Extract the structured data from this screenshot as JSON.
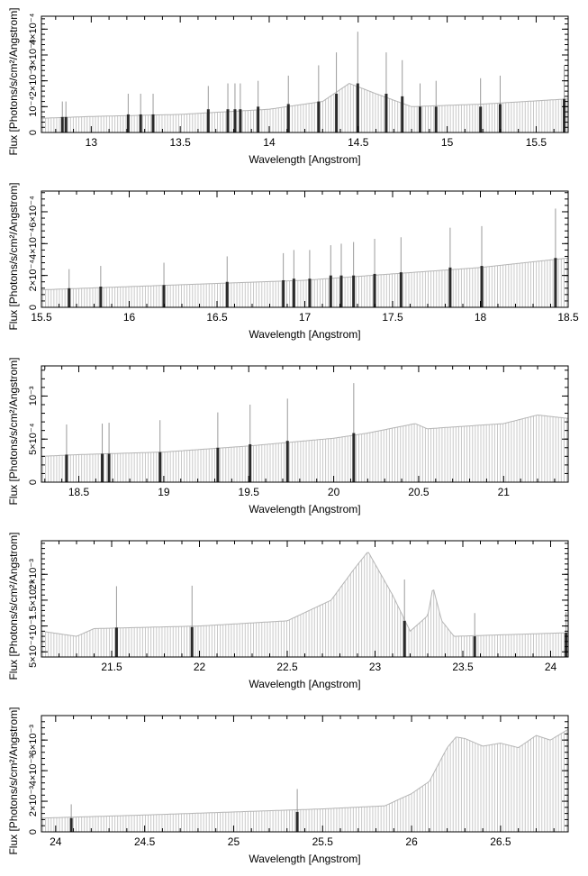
{
  "chart_data": [
    {
      "type": "bar",
      "xlabel": "Wavelength [Angstrom]",
      "ylabel": "Flux [Photons/s/cm²/Angstrom]",
      "xlim": [
        12.72,
        15.68
      ],
      "ylim": [
        0,
        0.00045
      ],
      "xticks": [
        "13",
        "13.5",
        "14",
        "14.5",
        "15",
        "15.5"
      ],
      "xtick_values": [
        13,
        13.5,
        14,
        14.5,
        15,
        15.5
      ],
      "yticks": [
        "0",
        "10⁻⁴",
        "2×10⁻⁴",
        "3×10⁻⁴",
        "4×10⁻⁴"
      ],
      "ytick_values": [
        0,
        0.0001,
        0.0002,
        0.0003,
        0.0004
      ],
      "continuum": [
        [
          12.72,
          5.5e-05
        ],
        [
          13.0,
          6.2e-05
        ],
        [
          13.5,
          7e-05
        ],
        [
          14.0,
          9e-05
        ],
        [
          14.3,
          0.00012
        ],
        [
          14.45,
          0.00019
        ],
        [
          14.6,
          0.00015
        ],
        [
          14.8,
          0.0001
        ],
        [
          15.2,
          0.00011
        ],
        [
          15.68,
          0.00013
        ]
      ],
      "lines": [
        {
          "x": 12.83,
          "y": 6e-05,
          "err": 6e-05
        },
        {
          "x": 12.85,
          "y": 6e-05,
          "err": 6e-05
        },
        {
          "x": 13.2,
          "y": 7e-05,
          "err": 8e-05
        },
        {
          "x": 13.27,
          "y": 7e-05,
          "err": 8e-05
        },
        {
          "x": 13.34,
          "y": 7e-05,
          "err": 8e-05
        },
        {
          "x": 13.65,
          "y": 9e-05,
          "err": 9e-05
        },
        {
          "x": 13.76,
          "y": 9e-05,
          "err": 0.0001
        },
        {
          "x": 13.8,
          "y": 9e-05,
          "err": 0.0001
        },
        {
          "x": 13.83,
          "y": 9e-05,
          "err": 0.0001
        },
        {
          "x": 13.93,
          "y": 0.0001,
          "err": 0.0001
        },
        {
          "x": 14.1,
          "y": 0.00011,
          "err": 0.00011
        },
        {
          "x": 14.27,
          "y": 0.00012,
          "err": 0.00014
        },
        {
          "x": 14.37,
          "y": 0.00015,
          "err": 0.00016
        },
        {
          "x": 14.49,
          "y": 0.00019,
          "err": 0.0002
        },
        {
          "x": 14.65,
          "y": 0.00015,
          "err": 0.00016
        },
        {
          "x": 14.74,
          "y": 0.00014,
          "err": 0.00014
        },
        {
          "x": 14.84,
          "y": 0.0001,
          "err": 9e-05
        },
        {
          "x": 14.93,
          "y": 0.0001,
          "err": 0.0001
        },
        {
          "x": 15.18,
          "y": 0.0001,
          "err": 0.00011
        },
        {
          "x": 15.29,
          "y": 0.00011,
          "err": 0.00011
        },
        {
          "x": 15.65,
          "y": 0.00013,
          "err": 0.00013
        }
      ]
    },
    {
      "type": "bar",
      "xlabel": "Wavelength [Angstrom]",
      "ylabel": "Flux [Photons/s/cm²/Angstrom]",
      "xlim": [
        15.5,
        18.5
      ],
      "ylim": [
        0,
        0.00073
      ],
      "xticks": [
        "15.5",
        "16",
        "16.5",
        "17",
        "17.5",
        "18",
        "18.5"
      ],
      "xtick_values": [
        15.5,
        16,
        16.5,
        17,
        17.5,
        18,
        18.5
      ],
      "yticks": [
        "0",
        "2×10⁻⁴",
        "4×10⁻⁴",
        "6×10⁻⁴"
      ],
      "ytick_values": [
        0,
        0.0002,
        0.0004,
        0.0006
      ],
      "continuum": [
        [
          15.5,
          0.00011
        ],
        [
          16.0,
          0.00013
        ],
        [
          16.5,
          0.00015
        ],
        [
          17.0,
          0.00017
        ],
        [
          17.5,
          0.00021
        ],
        [
          18.0,
          0.00025
        ],
        [
          18.5,
          0.00031
        ]
      ],
      "lines": [
        {
          "x": 15.65,
          "y": 0.00012,
          "err": 0.00012
        },
        {
          "x": 15.83,
          "y": 0.00013,
          "err": 0.00013
        },
        {
          "x": 16.19,
          "y": 0.00014,
          "err": 0.00014
        },
        {
          "x": 16.55,
          "y": 0.00016,
          "err": 0.00016
        },
        {
          "x": 16.87,
          "y": 0.00017,
          "err": 0.00017
        },
        {
          "x": 16.93,
          "y": 0.00018,
          "err": 0.00018
        },
        {
          "x": 17.02,
          "y": 0.00018,
          "err": 0.00018
        },
        {
          "x": 17.14,
          "y": 0.0002,
          "err": 0.00019
        },
        {
          "x": 17.2,
          "y": 0.0002,
          "err": 0.0002
        },
        {
          "x": 17.27,
          "y": 0.0002,
          "err": 0.00021
        },
        {
          "x": 17.39,
          "y": 0.00021,
          "err": 0.00022
        },
        {
          "x": 17.54,
          "y": 0.00022,
          "err": 0.00022
        },
        {
          "x": 17.82,
          "y": 0.00025,
          "err": 0.00025
        },
        {
          "x": 18.0,
          "y": 0.00026,
          "err": 0.00025
        },
        {
          "x": 18.42,
          "y": 0.00031,
          "err": 0.00031
        }
      ]
    },
    {
      "type": "bar",
      "xlabel": "Wavelength [Angstrom]",
      "ylabel": "Flux [Photons/s/cm²/Angstrom]",
      "xlim": [
        18.28,
        21.38
      ],
      "ylim": [
        0,
        0.00135
      ],
      "xticks": [
        "18.5",
        "19",
        "19.5",
        "20",
        "20.5",
        "21"
      ],
      "xtick_values": [
        18.5,
        19,
        19.5,
        20,
        20.5,
        21
      ],
      "yticks": [
        "0",
        "5×10⁻⁴",
        "10⁻³"
      ],
      "ytick_values": [
        0,
        0.0005,
        0.001
      ],
      "continuum": [
        [
          18.28,
          0.0003
        ],
        [
          18.5,
          0.00032
        ],
        [
          19.0,
          0.00035
        ],
        [
          19.5,
          0.00042
        ],
        [
          20.0,
          0.00051
        ],
        [
          20.2,
          0.00057
        ],
        [
          20.48,
          0.00068
        ],
        [
          20.55,
          0.00062
        ],
        [
          21.0,
          0.00068
        ],
        [
          21.2,
          0.00078
        ],
        [
          21.38,
          0.00074
        ]
      ],
      "lines": [
        {
          "x": 18.42,
          "y": 0.00032,
          "err": 0.00035
        },
        {
          "x": 18.63,
          "y": 0.00033,
          "err": 0.00035
        },
        {
          "x": 18.67,
          "y": 0.00033,
          "err": 0.00036
        },
        {
          "x": 18.97,
          "y": 0.00035,
          "err": 0.00037
        },
        {
          "x": 19.31,
          "y": 0.0004,
          "err": 0.00041
        },
        {
          "x": 19.5,
          "y": 0.00044,
          "err": 0.00046
        },
        {
          "x": 19.72,
          "y": 0.00048,
          "err": 0.00049
        },
        {
          "x": 20.11,
          "y": 0.00057,
          "err": 0.00058
        }
      ]
    },
    {
      "type": "bar",
      "xlabel": "Wavelength [Angstrom]",
      "ylabel": "Flux [Photons/s/cm²/Angstrom]",
      "xlim": [
        21.1,
        24.1
      ],
      "ylim": [
        0.0004,
        0.00265
      ],
      "xticks": [
        "21.5",
        "22",
        "22.5",
        "23",
        "23.5",
        "24"
      ],
      "xtick_values": [
        21.5,
        22,
        22.5,
        23,
        23.5,
        24
      ],
      "yticks": [
        "5×10⁻⁴",
        "10⁻³",
        "1.5×10⁻³",
        "2×10⁻³"
      ],
      "ytick_values": [
        0.0005,
        0.001,
        0.0015,
        0.002
      ],
      "continuum": [
        [
          21.1,
          0.0009
        ],
        [
          21.3,
          0.0008
        ],
        [
          21.4,
          0.00095
        ],
        [
          22.0,
          0.001
        ],
        [
          22.5,
          0.0011
        ],
        [
          22.75,
          0.0015
        ],
        [
          22.88,
          0.0021
        ],
        [
          22.96,
          0.00244
        ],
        [
          23.1,
          0.0016
        ],
        [
          23.2,
          0.0009
        ],
        [
          23.3,
          0.0012
        ],
        [
          23.33,
          0.00175
        ],
        [
          23.38,
          0.0011
        ],
        [
          23.45,
          0.0008
        ],
        [
          24.1,
          0.00087
        ]
      ],
      "lines": [
        {
          "x": 21.52,
          "y": 0.00097,
          "err": 0.0008
        },
        {
          "x": 21.95,
          "y": 0.00098,
          "err": 0.0008
        },
        {
          "x": 23.16,
          "y": 0.0011,
          "err": 0.0008
        },
        {
          "x": 23.56,
          "y": 0.0008,
          "err": 0.00045
        },
        {
          "x": 24.08,
          "y": 0.00087,
          "err": 0.0004
        }
      ]
    },
    {
      "type": "bar",
      "xlabel": "Wavelength [Angstrom]",
      "ylabel": "Flux [Photons/s/cm²/Angstrom]",
      "xlim": [
        23.92,
        26.88
      ],
      "ylim": [
        0,
        0.0076
      ],
      "xticks": [
        "24",
        "24.5",
        "25",
        "25.5",
        "26",
        "26.5"
      ],
      "xtick_values": [
        24,
        24.5,
        25,
        25.5,
        26,
        26.5
      ],
      "yticks": [
        "0",
        "2×10⁻³",
        "4×10⁻³",
        "6×10⁻³"
      ],
      "ytick_values": [
        0,
        0.002,
        0.004,
        0.006
      ],
      "continuum": [
        [
          23.92,
          0.0009
        ],
        [
          24.5,
          0.0011
        ],
        [
          25.0,
          0.0013
        ],
        [
          25.5,
          0.0015
        ],
        [
          25.85,
          0.0017
        ],
        [
          26.0,
          0.0025
        ],
        [
          26.1,
          0.0033
        ],
        [
          26.2,
          0.0055
        ],
        [
          26.25,
          0.0062
        ],
        [
          26.3,
          0.0061
        ],
        [
          26.4,
          0.0056
        ],
        [
          26.5,
          0.0058
        ],
        [
          26.6,
          0.0055
        ],
        [
          26.7,
          0.0063
        ],
        [
          26.78,
          0.006
        ],
        [
          26.88,
          0.0067
        ]
      ],
      "lines": [
        {
          "x": 24.08,
          "y": 0.0009,
          "err": 0.0009
        },
        {
          "x": 25.35,
          "y": 0.0013,
          "err": 0.0015
        }
      ]
    }
  ]
}
